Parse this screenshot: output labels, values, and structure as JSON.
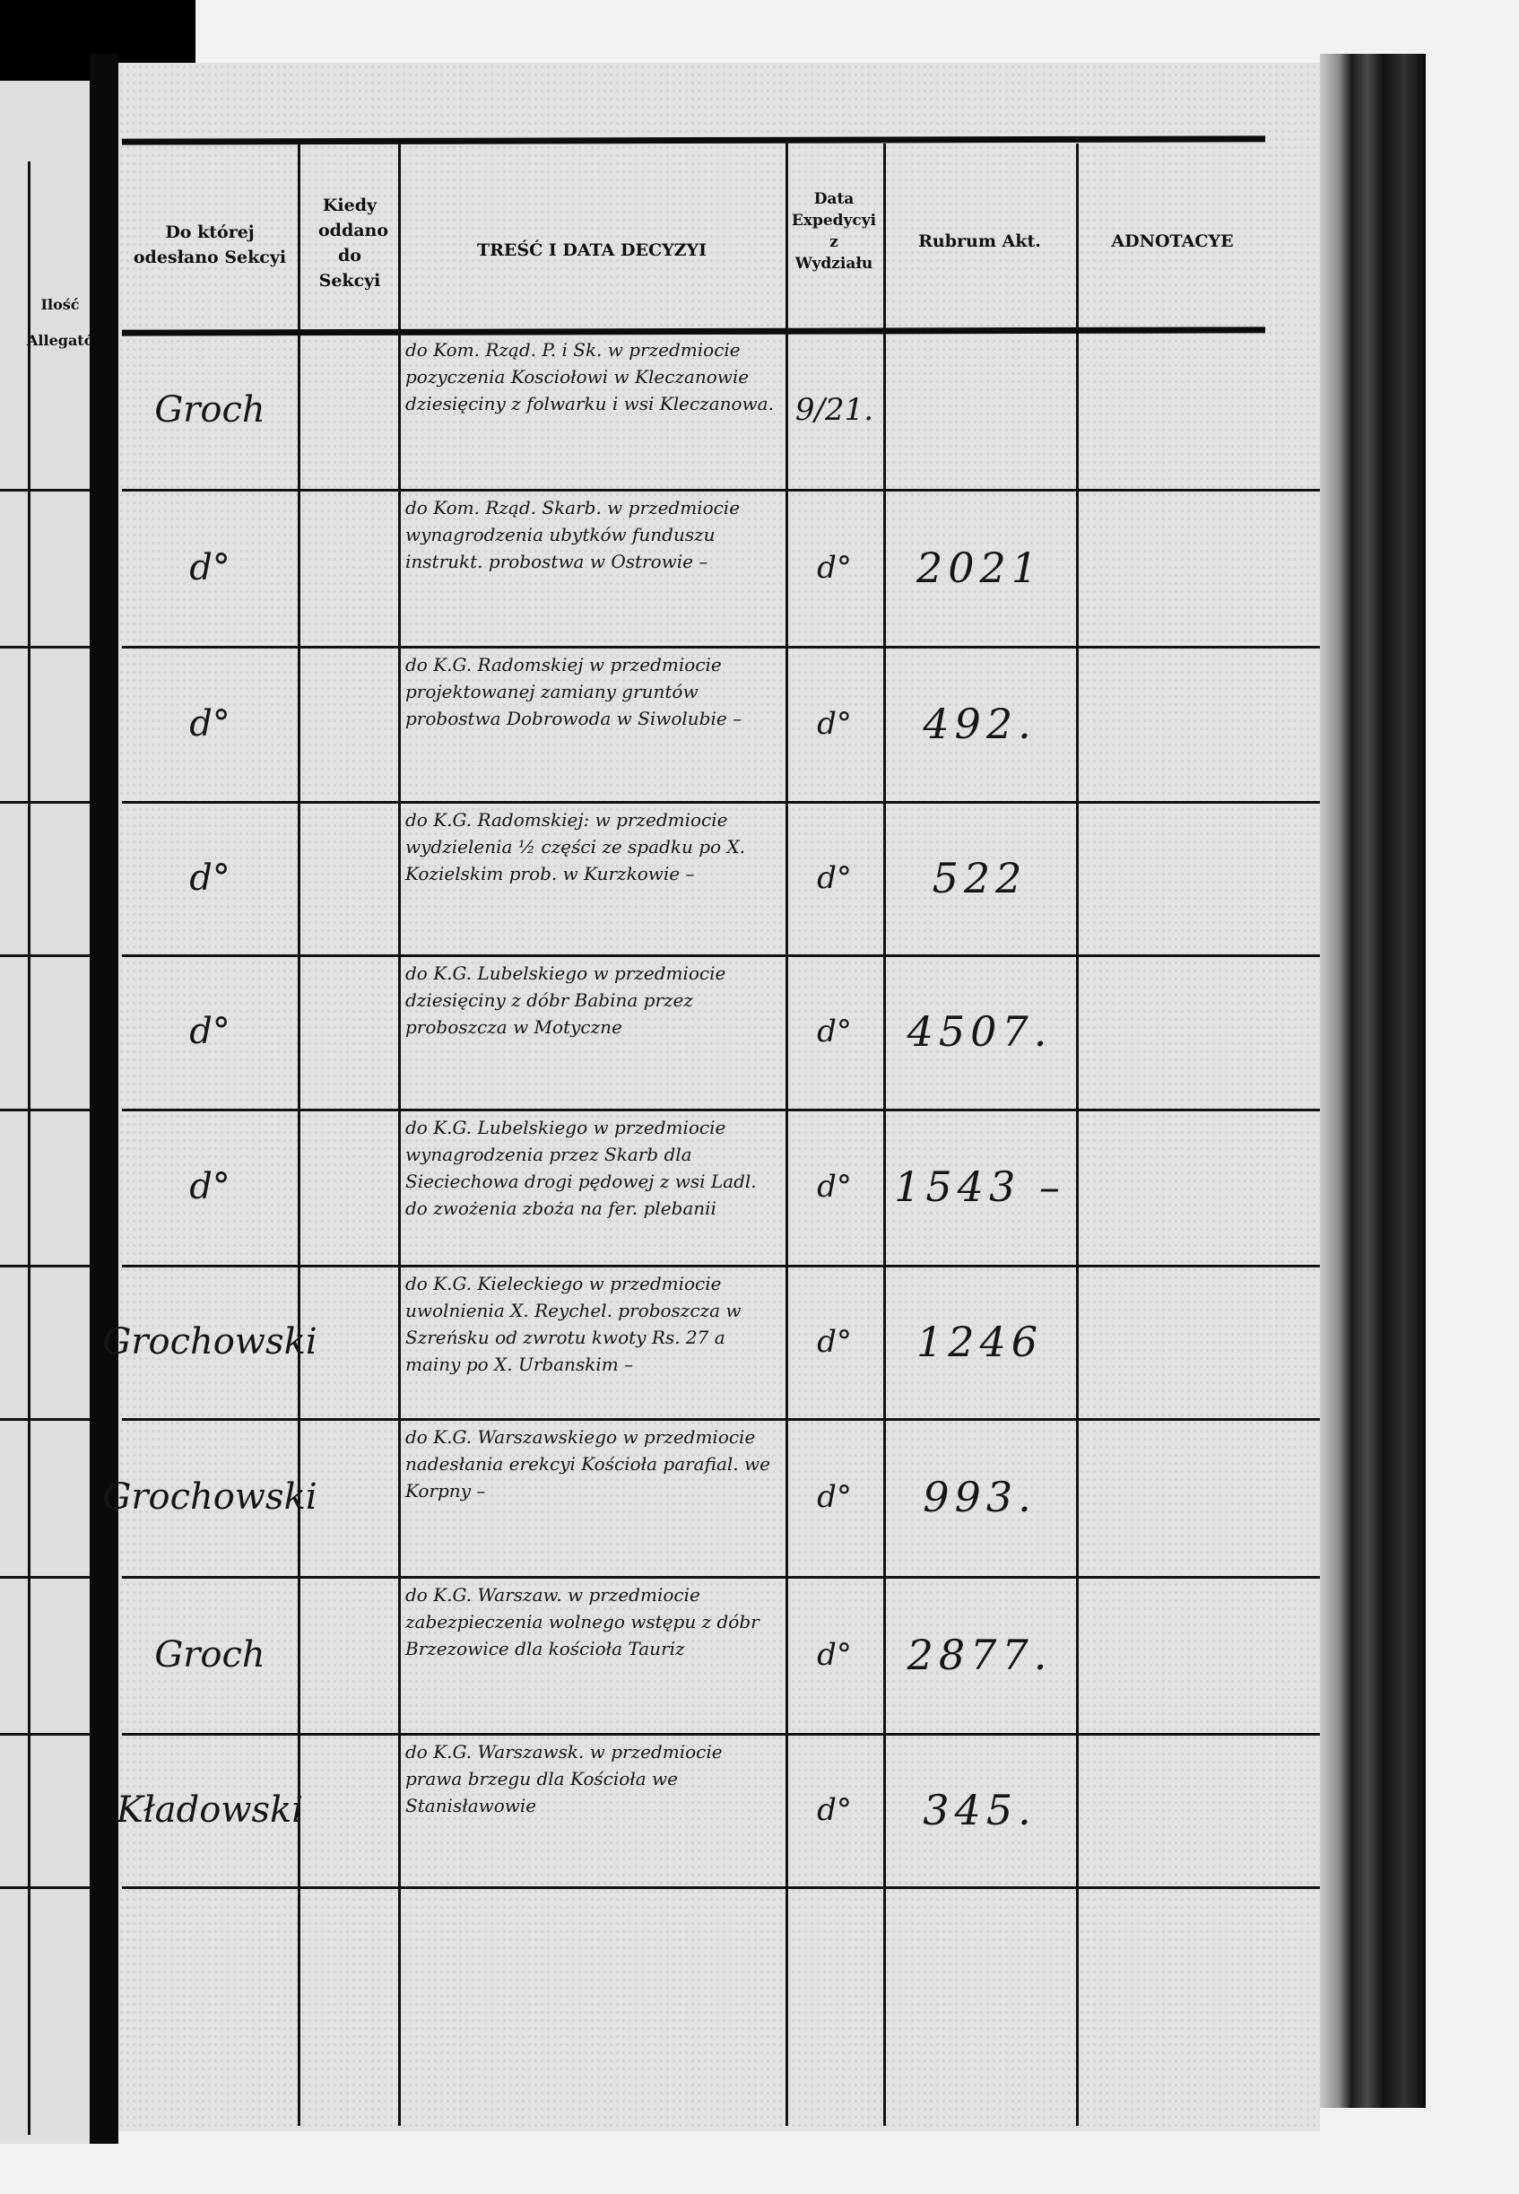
{
  "left_page": {
    "header": "Ilość Allegatów"
  },
  "headers": {
    "sekcja": "Do której odesłano Sekcyi",
    "kiedy": "Kiedy oddano do Sekcyi",
    "tresc": "TREŚĆ I DATA DECYZYI",
    "data_exp": "Data Expedycyi z Wydziału",
    "rubrum": "Rubrum Akt.",
    "adnotacye": "ADNOTACYE"
  },
  "rows": [
    {
      "sekcja": "Groch",
      "kiedy": "",
      "tresc": "do Kom. Rząd. P. i Sk. w przedmiocie pozyczenia Kosciołowi w Kleczanowie dziesięciny z folwarku i wsi Kleczanowa.",
      "data_exp": "9/21.",
      "rubrum": "",
      "adnotacye": ""
    },
    {
      "sekcja": "d°",
      "kiedy": "",
      "tresc": "do Kom. Rząd. Skarb. w przedmiocie wynagrodzenia ubytków funduszu instrukt. probostwa w Ostrowie –",
      "data_exp": "d°",
      "rubrum": "2021",
      "adnotacye": ""
    },
    {
      "sekcja": "d°",
      "kiedy": "",
      "tresc": "do K.G. Radomskiej w przedmiocie projektowanej zamiany gruntów probostwa Dobrowoda w Siwolubie –",
      "data_exp": "d°",
      "rubrum": "492.",
      "adnotacye": ""
    },
    {
      "sekcja": "d°",
      "kiedy": "",
      "tresc": "do K.G. Radomskiej: w przedmiocie wydzielenia ½ części ze spadku po X. Kozielskim prob. w Kurzkowie –",
      "data_exp": "d°",
      "rubrum": "522",
      "adnotacye": ""
    },
    {
      "sekcja": "d°",
      "kiedy": "",
      "tresc": "do K.G. Lubelskiego w przedmiocie dziesięciny z dóbr Babina przez proboszcza w Motyczne",
      "data_exp": "d°",
      "rubrum": "4507.",
      "adnotacye": ""
    },
    {
      "sekcja": "d°",
      "kiedy": "",
      "tresc": "do K.G. Lubelskiego w przedmiocie wynagrodzenia przez Skarb dla Sieciechowa drogi pędowej z wsi Ladl. do zwożenia zboża na fer. plebanii",
      "data_exp": "d°",
      "rubrum": "1543 –",
      "adnotacye": ""
    },
    {
      "sekcja": "Grochowski",
      "kiedy": "",
      "tresc": "do K.G. Kieleckiego w przedmiocie uwolnienia X. Reychel. proboszcza w Szreńsku od zwrotu kwoty Rs. 27 a mainy po X. Urbanskim –",
      "data_exp": "d°",
      "rubrum": "1246",
      "adnotacye": ""
    },
    {
      "sekcja": "Grochowski",
      "kiedy": "",
      "tresc": "do K.G. Warszawskiego w przedmiocie nadesłania erekcyi Kościoła parafial. we Korpny –",
      "data_exp": "d°",
      "rubrum": "993.",
      "adnotacye": ""
    },
    {
      "sekcja": "Groch",
      "kiedy": "",
      "tresc": "do K.G. Warszaw. w przedmiocie zabezpieczenia wolnego wstępu z dóbr Brzezowice dla kościoła Tauriz",
      "data_exp": "d°",
      "rubrum": "2877.",
      "adnotacye": ""
    },
    {
      "sekcja": "Kładowski",
      "kiedy": "",
      "tresc": "do K.G. Warszawsk. w przedmiocie prawa brzegu dla Kościoła we Stanisławowie",
      "data_exp": "d°",
      "rubrum": "345.",
      "adnotacye": ""
    }
  ]
}
